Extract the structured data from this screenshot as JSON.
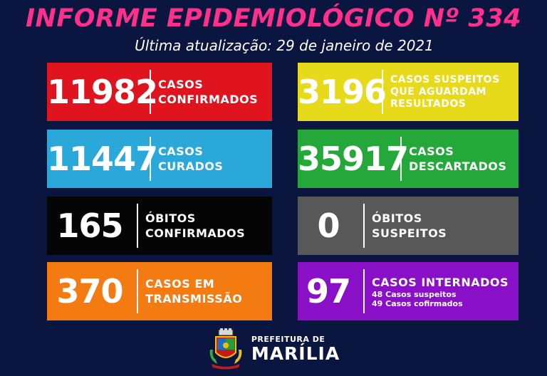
{
  "header": {
    "title": "INFORME EPIDEMIOLÓGICO Nº 334",
    "subtitle": "Última atualização: 29 de janeiro de 2021"
  },
  "colors": {
    "background": "#0b1640",
    "title": "#ff2f8c",
    "red": "#e0141e",
    "yellow": "#e6da1a",
    "blue": "#2aa8da",
    "green": "#23a839",
    "black": "#050505",
    "gray": "#585858",
    "orange": "#f47b12",
    "purple": "#8a10c8"
  },
  "cards": {
    "confirmados": {
      "value": "11982",
      "label": "CASOS\nCONFIRMADOS"
    },
    "suspeitos": {
      "value": "3196",
      "label": "CASOS SUSPEITOS\nQUE AGUARDAM\nRESULTADOS"
    },
    "curados": {
      "value": "11447",
      "label": "CASOS\nCURADOS"
    },
    "descartados": {
      "value": "35917",
      "label": "CASOS\nDESCARTADOS"
    },
    "obitos_confirmados": {
      "value": "165",
      "label": "ÓBITOS\nCONFIRMADOS"
    },
    "obitos_suspeitos": {
      "value": "0",
      "label": "ÓBITOS\nSUSPEITOS"
    },
    "transmissao": {
      "value": "370",
      "label": "CASOS EM\nTRANSMISSÃO"
    },
    "internados": {
      "value": "97",
      "label": "CASOS INTERNADOS",
      "sub1": "48 Casos suspeitos",
      "sub2": "49 Casos cofirmados"
    }
  },
  "footer": {
    "line1": "PREFEITURA DE",
    "line2": "MARÍLIA",
    "crest_icon": "city-coat-of-arms"
  }
}
